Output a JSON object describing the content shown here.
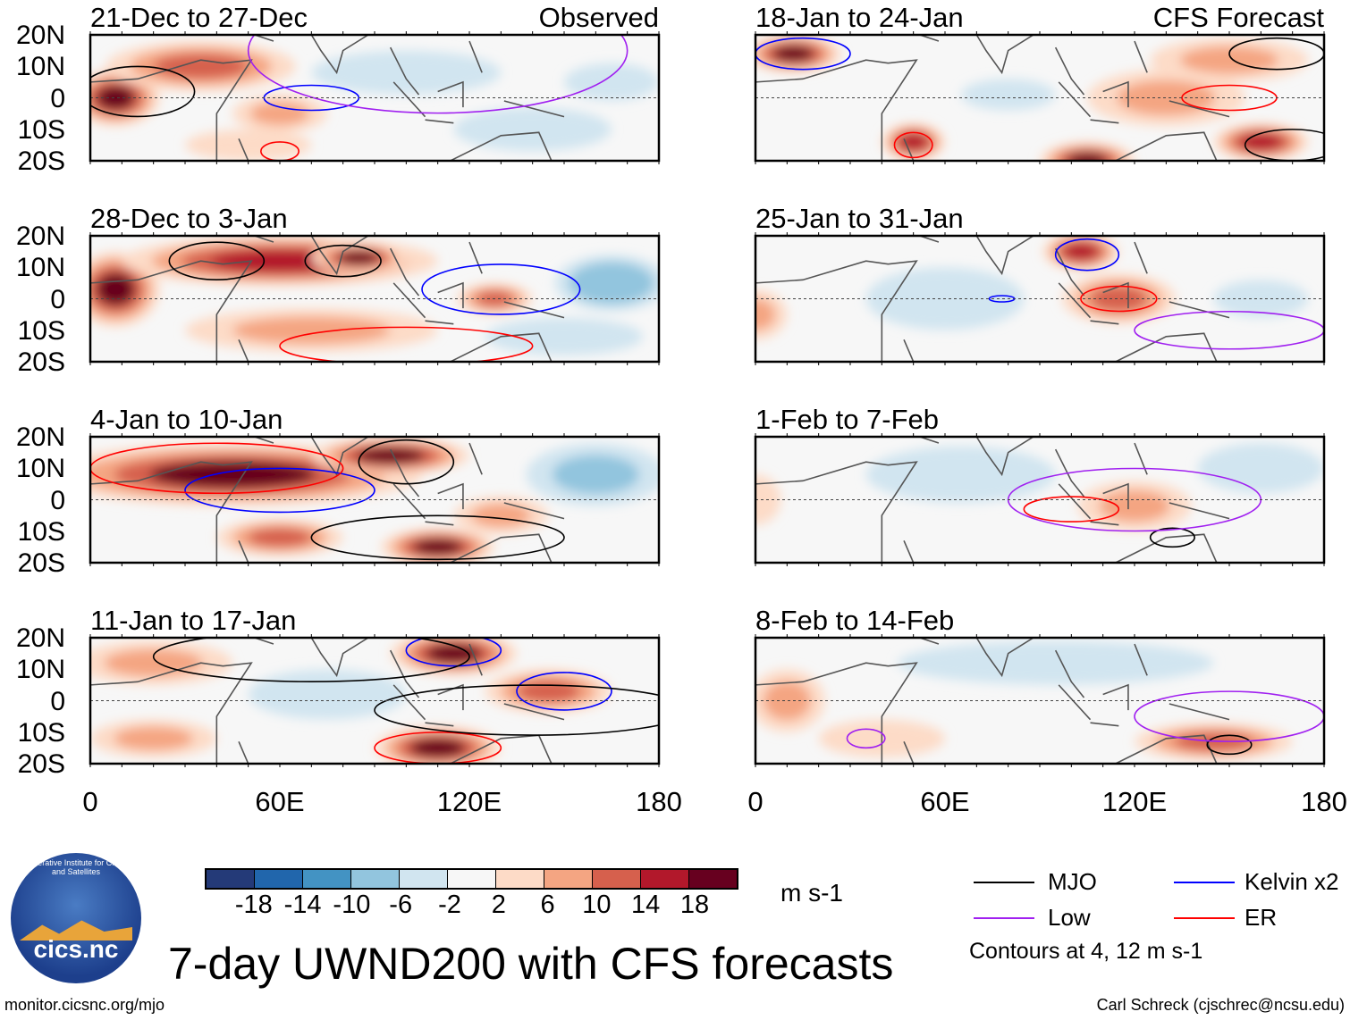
{
  "header": {
    "observed_label": "Observed",
    "forecast_label": "CFS Forecast"
  },
  "y_ticks": [
    "20N",
    "10N",
    "0",
    "10S",
    "20S"
  ],
  "x_ticks": [
    "0",
    "60E",
    "120E",
    "180"
  ],
  "colorbar": {
    "colors": [
      "#243a78",
      "#2166ac",
      "#4393c3",
      "#92c5de",
      "#d1e5f0",
      "#f7f7f7",
      "#fddbc7",
      "#f4a582",
      "#d6604d",
      "#b2182b",
      "#67001f"
    ],
    "labels": [
      "-18",
      "-14",
      "-10",
      "-6",
      "-2",
      "2",
      "6",
      "10",
      "14",
      "18"
    ],
    "units": "m s-1"
  },
  "legend": {
    "items": [
      {
        "label": "MJO",
        "color": "#000000"
      },
      {
        "label": "Kelvin x2",
        "color": "#0000ff"
      },
      {
        "label": "Low",
        "color": "#a020f0"
      },
      {
        "label": "ER",
        "color": "#ff0000"
      }
    ],
    "note": "Contours at 4, 12 m s-1"
  },
  "title": "7-day UWND200 with CFS forecasts",
  "footer": {
    "left": "monitor.cicsnc.org/mjo",
    "right": "Carl Schreck (cjschrec@ncsu.edu)"
  },
  "logo": {
    "text": "cics.nc",
    "arc_text": "Cooperative Institute for Climate and Satellites"
  },
  "chart_data": {
    "type": "heatmap",
    "variable": "200-hPa zonal wind anomaly (m s-1)",
    "lon_range": [
      0,
      180
    ],
    "lat_range": [
      -20,
      20
    ],
    "panels": [
      {
        "title": "21-Dec to 27-Dec",
        "col": "observed",
        "anoms": [
          [
            8,
            0,
            14,
            9,
            18
          ],
          [
            35,
            10,
            30,
            8,
            10
          ],
          [
            60,
            -5,
            15,
            6,
            6
          ],
          [
            100,
            8,
            30,
            7,
            -4
          ],
          [
            140,
            -10,
            25,
            7,
            -6
          ],
          [
            165,
            5,
            15,
            6,
            -4
          ],
          [
            50,
            -15,
            20,
            5,
            4
          ]
        ],
        "contours": [
          [
            15,
            2,
            18,
            8,
            "#000000"
          ],
          [
            70,
            0,
            15,
            4,
            "#0000ff"
          ],
          [
            110,
            15,
            60,
            20,
            "#a020f0"
          ],
          [
            60,
            -17,
            6,
            3,
            "#ff0000"
          ]
        ]
      },
      {
        "title": "28-Dec to 3-Jan",
        "col": "observed",
        "anoms": [
          [
            8,
            3,
            14,
            12,
            18
          ],
          [
            60,
            12,
            50,
            8,
            14
          ],
          [
            85,
            13,
            15,
            5,
            18
          ],
          [
            128,
            0,
            12,
            5,
            12
          ],
          [
            165,
            5,
            18,
            9,
            -10
          ],
          [
            150,
            -12,
            25,
            6,
            -4
          ],
          [
            70,
            -10,
            40,
            7,
            6
          ]
        ],
        "contours": [
          [
            40,
            12,
            15,
            6,
            "#000000"
          ],
          [
            80,
            12,
            12,
            5,
            "#000000"
          ],
          [
            130,
            3,
            25,
            8,
            "#0000ff"
          ],
          [
            100,
            -15,
            40,
            6,
            "#ff0000"
          ]
        ]
      },
      {
        "title": "4-Jan to 10-Jan",
        "col": "observed",
        "anoms": [
          [
            45,
            8,
            60,
            10,
            18
          ],
          [
            95,
            14,
            25,
            6,
            18
          ],
          [
            110,
            -15,
            18,
            6,
            18
          ],
          [
            160,
            8,
            22,
            10,
            -8
          ],
          [
            60,
            -12,
            20,
            6,
            10
          ],
          [
            130,
            -5,
            15,
            6,
            6
          ]
        ],
        "contours": [
          [
            100,
            12,
            15,
            7,
            "#000000"
          ],
          [
            60,
            3,
            30,
            7,
            "#0000ff"
          ],
          [
            40,
            10,
            40,
            8,
            "#ff0000"
          ],
          [
            110,
            -12,
            40,
            7,
            "#000000"
          ]
        ]
      },
      {
        "title": "11-Jan to 17-Jan",
        "col": "observed",
        "anoms": [
          [
            115,
            15,
            20,
            7,
            18
          ],
          [
            110,
            -15,
            20,
            7,
            18
          ],
          [
            75,
            2,
            25,
            8,
            -6
          ],
          [
            145,
            3,
            20,
            7,
            10
          ],
          [
            20,
            12,
            25,
            7,
            6
          ],
          [
            20,
            -12,
            20,
            6,
            6
          ]
        ],
        "contours": [
          [
            115,
            16,
            15,
            5,
            "#0000ff"
          ],
          [
            150,
            3,
            15,
            6,
            "#0000ff"
          ],
          [
            110,
            -15,
            20,
            5,
            "#ff0000"
          ],
          [
            70,
            14,
            50,
            8,
            "#000000"
          ],
          [
            140,
            -3,
            50,
            8,
            "#000000"
          ]
        ]
      },
      {
        "title": "18-Jan to 24-Jan",
        "col": "forecast",
        "anoms": [
          [
            12,
            14,
            15,
            6,
            18
          ],
          [
            105,
            -20,
            15,
            6,
            18
          ],
          [
            160,
            -14,
            15,
            6,
            14
          ],
          [
            80,
            1,
            15,
            5,
            -6
          ],
          [
            50,
            -14,
            10,
            6,
            14
          ],
          [
            130,
            0,
            25,
            9,
            6
          ],
          [
            150,
            12,
            25,
            7,
            6
          ]
        ],
        "contours": [
          [
            15,
            14,
            15,
            5,
            "#0000ff"
          ],
          [
            150,
            0,
            15,
            4,
            "#ff0000"
          ],
          [
            50,
            -15,
            6,
            4,
            "#ff0000"
          ],
          [
            170,
            -15,
            15,
            5,
            "#000000"
          ],
          [
            165,
            14,
            15,
            5,
            "#000000"
          ]
        ]
      },
      {
        "title": "25-Jan to 31-Jan",
        "col": "forecast",
        "anoms": [
          [
            103,
            15,
            12,
            6,
            14
          ],
          [
            115,
            0,
            18,
            8,
            12
          ],
          [
            60,
            0,
            25,
            10,
            -4
          ],
          [
            160,
            0,
            15,
            6,
            -3
          ],
          [
            0,
            -5,
            10,
            8,
            6
          ]
        ],
        "contours": [
          [
            105,
            14,
            10,
            5,
            "#0000ff"
          ],
          [
            115,
            0,
            12,
            4,
            "#ff0000"
          ],
          [
            78,
            0,
            4,
            1,
            "#0000ff"
          ],
          [
            150,
            -10,
            30,
            6,
            "#a020f0"
          ]
        ]
      },
      {
        "title": "1-Feb to 7-Feb",
        "col": "forecast",
        "anoms": [
          [
            65,
            8,
            30,
            9,
            -6
          ],
          [
            120,
            -2,
            18,
            8,
            8
          ],
          [
            160,
            10,
            20,
            8,
            -3
          ],
          [
            0,
            0,
            8,
            8,
            4
          ]
        ],
        "contours": [
          [
            100,
            -3,
            15,
            4,
            "#ff0000"
          ],
          [
            132,
            -12,
            7,
            3,
            "#000000"
          ],
          [
            120,
            0,
            40,
            10,
            "#a020f0"
          ]
        ]
      },
      {
        "title": "8-Feb to 14-Feb",
        "col": "forecast",
        "anoms": [
          [
            95,
            12,
            50,
            7,
            -3
          ],
          [
            145,
            -13,
            25,
            6,
            10
          ],
          [
            10,
            0,
            12,
            10,
            8
          ],
          [
            40,
            -12,
            20,
            6,
            4
          ]
        ],
        "contours": [
          [
            150,
            -14,
            7,
            3,
            "#000000"
          ],
          [
            35,
            -12,
            6,
            3,
            "#a020f0"
          ],
          [
            150,
            -5,
            30,
            8,
            "#a020f0"
          ]
        ]
      }
    ]
  }
}
